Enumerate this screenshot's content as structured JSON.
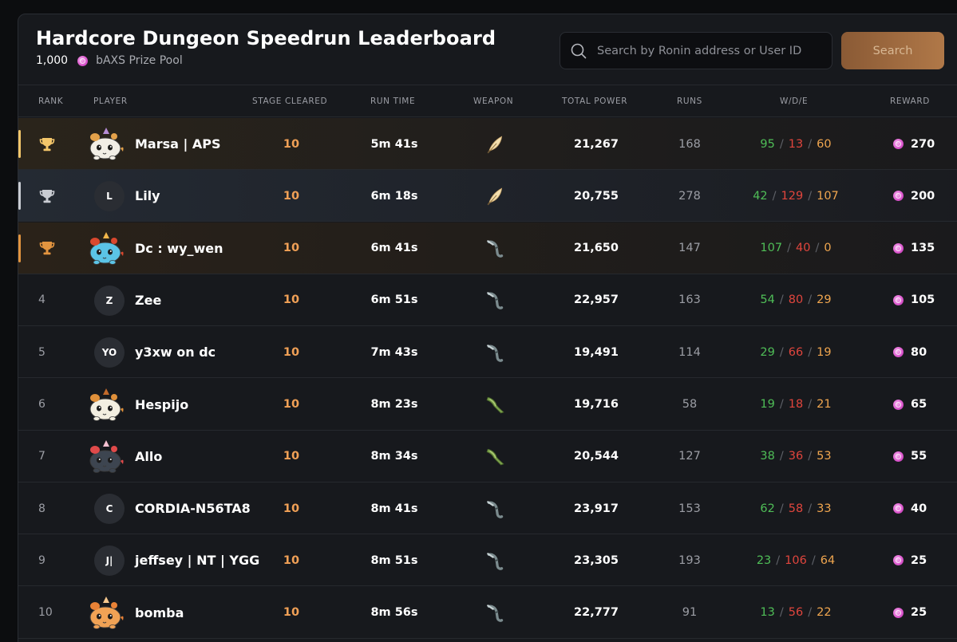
{
  "header": {
    "title": "Hardcore Dungeon Speedrun Leaderboard",
    "prize_amount": "1,000",
    "prize_label": "bAXS Prize Pool",
    "search_placeholder": "Search by Ronin address or User ID",
    "search_button": "Search"
  },
  "columns": {
    "rank": "RANK",
    "player": "PLAYER",
    "stage": "STAGE CLEARED",
    "runtime": "RUN TIME",
    "weapon": "WEAPON",
    "power": "TOTAL POWER",
    "runs": "RUNS",
    "wde": "W/D/E",
    "reward": "REWARD"
  },
  "colors": {
    "gold": "#f3c66a",
    "silver": "#c9ccd2",
    "bronze": "#e2943f",
    "stage": "#f0a056",
    "win": "#4fbe57",
    "draw": "#e0453d",
    "escape": "#f0a64f"
  },
  "rows": [
    {
      "rank": "1",
      "trophy": "gold",
      "avatar": "axie-white",
      "initials": "",
      "name": "Marsa | APS",
      "stage": "10",
      "runtime": "5m 41s",
      "weapon": "feather-icon",
      "power": "21,267",
      "runs": "168",
      "w": "95",
      "d": "13",
      "e": "60",
      "reward": "270"
    },
    {
      "rank": "2",
      "trophy": "silver",
      "avatar": "initials",
      "initials": "L",
      "name": "Lily",
      "stage": "10",
      "runtime": "6m 18s",
      "weapon": "feather-icon",
      "power": "20,755",
      "runs": "278",
      "w": "42",
      "d": "129",
      "e": "107",
      "reward": "200"
    },
    {
      "rank": "3",
      "trophy": "bronze",
      "avatar": "axie-blue",
      "initials": "",
      "name": "Dc : wy_wen",
      "stage": "10",
      "runtime": "6m 41s",
      "weapon": "hook-icon",
      "power": "21,650",
      "runs": "147",
      "w": "107",
      "d": "40",
      "e": "0",
      "reward": "135"
    },
    {
      "rank": "4",
      "trophy": "",
      "avatar": "initials",
      "initials": "Z",
      "name": "Zee",
      "stage": "10",
      "runtime": "6m 51s",
      "weapon": "hook-icon",
      "power": "22,957",
      "runs": "163",
      "w": "54",
      "d": "80",
      "e": "29",
      "reward": "105"
    },
    {
      "rank": "5",
      "trophy": "",
      "avatar": "initials",
      "initials": "YO",
      "name": "y3xw on dc",
      "stage": "10",
      "runtime": "7m 43s",
      "weapon": "hook-icon",
      "power": "19,491",
      "runs": "114",
      "w": "29",
      "d": "66",
      "e": "19",
      "reward": "80"
    },
    {
      "rank": "6",
      "trophy": "",
      "avatar": "axie-cream",
      "initials": "",
      "name": "Hespijo",
      "stage": "10",
      "runtime": "8m 23s",
      "weapon": "boomerang-icon",
      "power": "19,716",
      "runs": "58",
      "w": "19",
      "d": "18",
      "e": "21",
      "reward": "65"
    },
    {
      "rank": "7",
      "trophy": "",
      "avatar": "axie-dark",
      "initials": "",
      "name": "Allo",
      "stage": "10",
      "runtime": "8m 34s",
      "weapon": "boomerang-icon",
      "power": "20,544",
      "runs": "127",
      "w": "38",
      "d": "36",
      "e": "53",
      "reward": "55"
    },
    {
      "rank": "8",
      "trophy": "",
      "avatar": "initials",
      "initials": "C",
      "name": "CORDIA-N56TA8",
      "stage": "10",
      "runtime": "8m 41s",
      "weapon": "hook-icon",
      "power": "23,917",
      "runs": "153",
      "w": "62",
      "d": "58",
      "e": "33",
      "reward": "40"
    },
    {
      "rank": "9",
      "trophy": "",
      "avatar": "initials",
      "initials": "J|",
      "name": "jeffsey | NT | YGG",
      "stage": "10",
      "runtime": "8m 51s",
      "weapon": "hook-icon",
      "power": "23,305",
      "runs": "193",
      "w": "23",
      "d": "106",
      "e": "64",
      "reward": "25"
    },
    {
      "rank": "10",
      "trophy": "",
      "avatar": "axie-orange",
      "initials": "",
      "name": "bomba",
      "stage": "10",
      "runtime": "8m 56s",
      "weapon": "hook-icon",
      "power": "22,777",
      "runs": "91",
      "w": "13",
      "d": "56",
      "e": "22",
      "reward": "25"
    }
  ]
}
